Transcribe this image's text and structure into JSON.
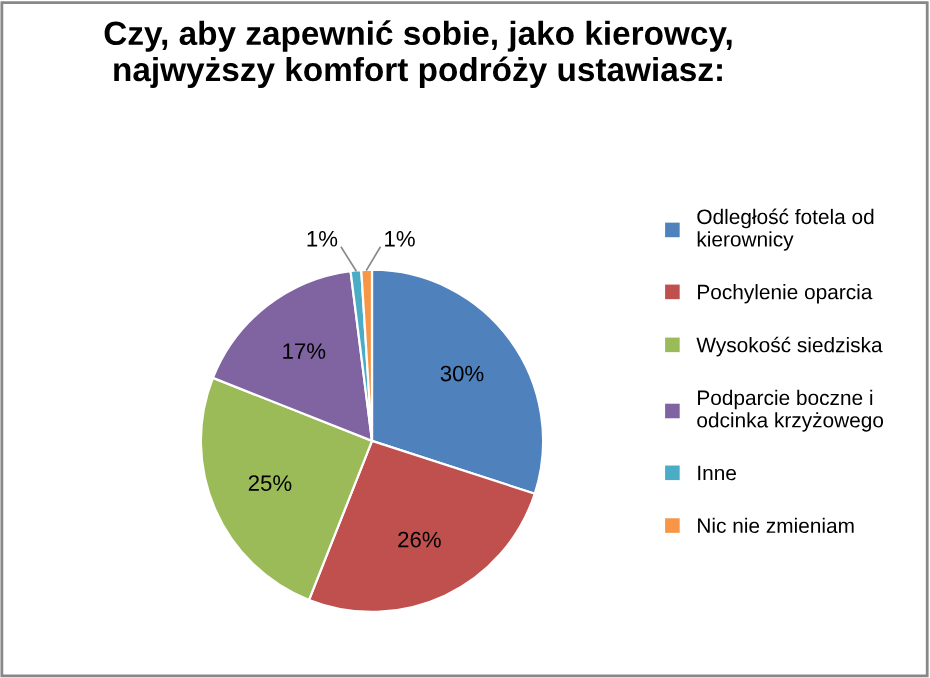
{
  "chart_data": {
    "type": "pie",
    "title": "Czy, aby zapewnić sobie, jako kierowcy, najwyższy komfort podróży ustawiasz:",
    "categories": [
      "Odległość fotela od kierownicy",
      "Pochylenie oparcia",
      "Wysokość siedziska",
      "Podparcie boczne i odcinka krzyżowego",
      "Inne",
      "Nic nie zmieniam"
    ],
    "values": [
      30,
      26,
      25,
      17,
      1,
      1
    ],
    "colors": [
      "#4f81bd",
      "#c0504d",
      "#9bbb59",
      "#8064a2",
      "#4bacc6",
      "#f79646"
    ],
    "value_labels": [
      "30%",
      "26%",
      "25%",
      "17%",
      "1%",
      "1%"
    ],
    "legend": "right"
  }
}
